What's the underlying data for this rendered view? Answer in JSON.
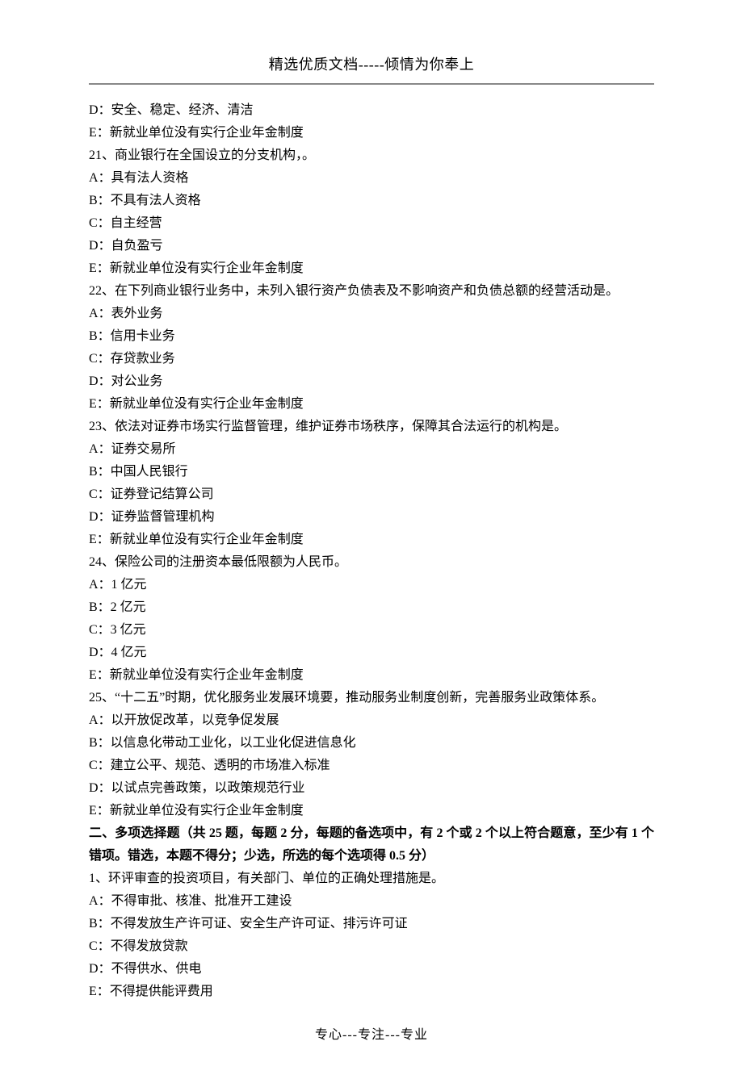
{
  "header": "精选优质文档-----倾情为你奉上",
  "footer": "专心---专注---专业",
  "lines": [
    {
      "type": "option",
      "text": "D：安全、稳定、经济、清洁"
    },
    {
      "type": "option",
      "text": "E：新就业单位没有实行企业年金制度"
    },
    {
      "type": "question",
      "text": "21、商业银行在全国设立的分支机构，。"
    },
    {
      "type": "option",
      "text": "A：具有法人资格"
    },
    {
      "type": "option",
      "text": "B：不具有法人资格"
    },
    {
      "type": "option",
      "text": "C：自主经营"
    },
    {
      "type": "option",
      "text": "D：自负盈亏"
    },
    {
      "type": "option",
      "text": "E：新就业单位没有实行企业年金制度"
    },
    {
      "type": "question",
      "text": "22、在下列商业银行业务中，未列入银行资产负债表及不影响资产和负债总额的经营活动是。"
    },
    {
      "type": "option",
      "text": "A：表外业务"
    },
    {
      "type": "option",
      "text": "B：信用卡业务"
    },
    {
      "type": "option",
      "text": "C：存贷款业务"
    },
    {
      "type": "option",
      "text": "D：对公业务"
    },
    {
      "type": "option",
      "text": "E：新就业单位没有实行企业年金制度"
    },
    {
      "type": "question",
      "text": "23、依法对证券市场实行监督管理，维护证券市场秩序，保障其合法运行的机构是。"
    },
    {
      "type": "option",
      "text": "A：证券交易所"
    },
    {
      "type": "option",
      "text": "B：中国人民银行"
    },
    {
      "type": "option",
      "text": "C：证券登记结算公司"
    },
    {
      "type": "option",
      "text": "D：证券监督管理机构"
    },
    {
      "type": "option",
      "text": "E：新就业单位没有实行企业年金制度"
    },
    {
      "type": "question",
      "text": "24、保险公司的注册资本最低限额为人民币。"
    },
    {
      "type": "option",
      "text": "A：1 亿元"
    },
    {
      "type": "option",
      "text": "B：2 亿元"
    },
    {
      "type": "option",
      "text": "C：3 亿元"
    },
    {
      "type": "option",
      "text": "D：4 亿元"
    },
    {
      "type": "option",
      "text": "E：新就业单位没有实行企业年金制度"
    },
    {
      "type": "question",
      "text": "25、“十二五”时期，优化服务业发展环境要，推动服务业制度创新，完善服务业政策体系。"
    },
    {
      "type": "option",
      "text": "A：以开放促改革，以竞争促发展"
    },
    {
      "type": "option",
      "text": "B：以信息化带动工业化，以工业化促进信息化"
    },
    {
      "type": "option",
      "text": "C：建立公平、规范、透明的市场准入标准"
    },
    {
      "type": "option",
      "text": "D：以试点完善政策，以政策规范行业"
    },
    {
      "type": "option",
      "text": "E：新就业单位没有实行企业年金制度"
    },
    {
      "type": "bold",
      "text": "二、多项选择题（共 25 题，每题 2 分，每题的备选项中，有 2 个或 2 个以上符合题意，至少有 1 个错项。错选，本题不得分；少选，所选的每个选项得 0.5 分）"
    },
    {
      "type": "question",
      "text": "1、环评审查的投资项目，有关部门、单位的正确处理措施是。"
    },
    {
      "type": "option",
      "text": "A：不得审批、核准、批准开工建设"
    },
    {
      "type": "option",
      "text": "B：不得发放生产许可证、安全生产许可证、排污许可证"
    },
    {
      "type": "option",
      "text": "C：不得发放贷款"
    },
    {
      "type": "option",
      "text": "D：不得供水、供电"
    },
    {
      "type": "option",
      "text": "E：不得提供能评费用"
    }
  ]
}
